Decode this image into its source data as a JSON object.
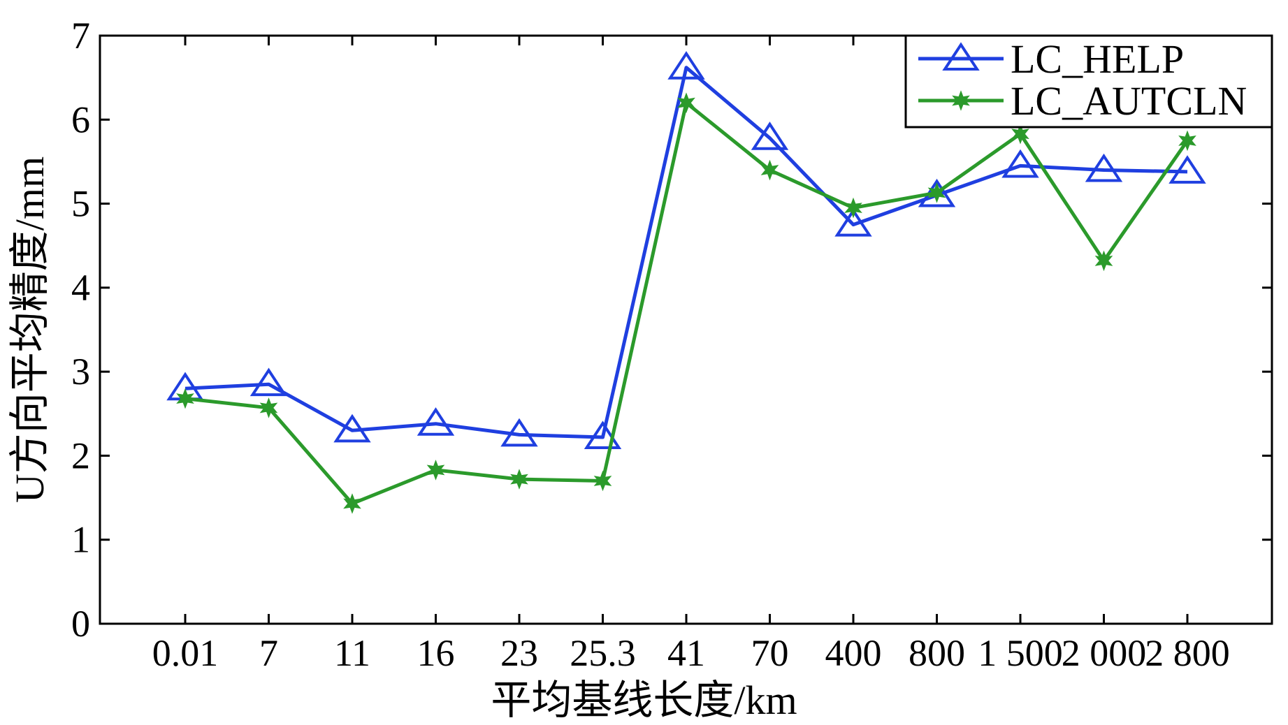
{
  "chart_data": {
    "type": "line",
    "categories": [
      "0.01",
      "7",
      "11",
      "16",
      "23",
      "25.3",
      "41",
      "70",
      "400",
      "800",
      "1 500",
      "2 000",
      "2 800"
    ],
    "series": [
      {
        "name": "LC_HELP",
        "color": "#1f3fe0",
        "marker": "triangle-open",
        "values": [
          2.8,
          2.85,
          2.3,
          2.38,
          2.25,
          2.22,
          6.62,
          5.78,
          4.75,
          5.1,
          5.45,
          5.4,
          5.38
        ]
      },
      {
        "name": "LC_AUTCLN",
        "color": "#2b9a2b",
        "marker": "star-filled",
        "values": [
          2.68,
          2.57,
          1.43,
          1.83,
          1.72,
          1.7,
          6.2,
          5.4,
          4.95,
          5.13,
          5.83,
          4.32,
          5.75
        ]
      }
    ],
    "ylim": [
      0,
      7
    ],
    "yticks": [
      "0",
      "1",
      "2",
      "3",
      "4",
      "5",
      "6",
      "7"
    ],
    "xlabel": "平均基线长度/km",
    "ylabel": "U方向平均精度/mm",
    "grid": false,
    "legend_position": "top-right"
  }
}
